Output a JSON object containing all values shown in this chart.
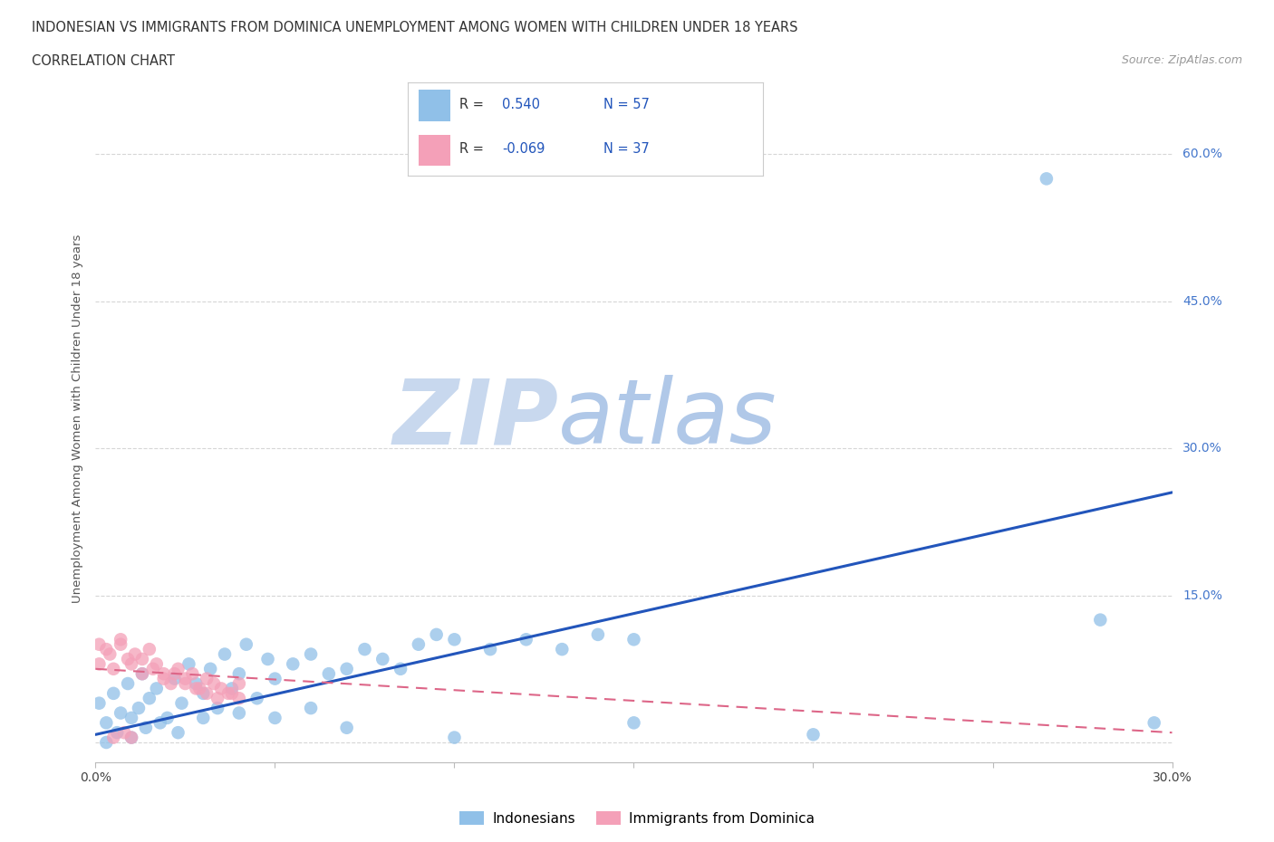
{
  "title_line1": "INDONESIAN VS IMMIGRANTS FROM DOMINICA UNEMPLOYMENT AMONG WOMEN WITH CHILDREN UNDER 18 YEARS",
  "title_line2": "CORRELATION CHART",
  "source_text": "Source: ZipAtlas.com",
  "ylabel": "Unemployment Among Women with Children Under 18 years",
  "xlim": [
    0.0,
    0.3
  ],
  "ylim": [
    -0.02,
    0.68
  ],
  "yticks": [
    0.0,
    0.15,
    0.3,
    0.45,
    0.6
  ],
  "ytick_labels": [
    "",
    "15.0%",
    "30.0%",
    "45.0%",
    "60.0%"
  ],
  "xticks": [
    0.0,
    0.05,
    0.1,
    0.15,
    0.2,
    0.25,
    0.3
  ],
  "xtick_labels": [
    "0.0%",
    "",
    "",
    "",
    "",
    "",
    "30.0%"
  ],
  "blue_R": 0.54,
  "blue_N": 57,
  "pink_R": -0.069,
  "pink_N": 37,
  "blue_color": "#90c0e8",
  "pink_color": "#f4a0b8",
  "blue_line_color": "#2255bb",
  "pink_line_color": "#dd6688",
  "grid_color": "#cccccc",
  "background_color": "#ffffff",
  "watermark_color": "#dce8f5",
  "blue_scatter_x": [
    0.001,
    0.003,
    0.005,
    0.007,
    0.009,
    0.01,
    0.012,
    0.013,
    0.015,
    0.017,
    0.02,
    0.022,
    0.024,
    0.026,
    0.028,
    0.03,
    0.032,
    0.034,
    0.036,
    0.038,
    0.04,
    0.042,
    0.045,
    0.048,
    0.05,
    0.055,
    0.06,
    0.065,
    0.07,
    0.075,
    0.08,
    0.085,
    0.09,
    0.095,
    0.1,
    0.11,
    0.12,
    0.13,
    0.14,
    0.15,
    0.003,
    0.006,
    0.01,
    0.014,
    0.018,
    0.023,
    0.03,
    0.04,
    0.05,
    0.06,
    0.07,
    0.1,
    0.15,
    0.2,
    0.265,
    0.28,
    0.295
  ],
  "blue_scatter_y": [
    0.04,
    0.02,
    0.05,
    0.03,
    0.06,
    0.025,
    0.035,
    0.07,
    0.045,
    0.055,
    0.025,
    0.065,
    0.04,
    0.08,
    0.06,
    0.05,
    0.075,
    0.035,
    0.09,
    0.055,
    0.07,
    0.1,
    0.045,
    0.085,
    0.065,
    0.08,
    0.09,
    0.07,
    0.075,
    0.095,
    0.085,
    0.075,
    0.1,
    0.11,
    0.105,
    0.095,
    0.105,
    0.095,
    0.11,
    0.105,
    0.0,
    0.01,
    0.005,
    0.015,
    0.02,
    0.01,
    0.025,
    0.03,
    0.025,
    0.035,
    0.015,
    0.005,
    0.02,
    0.008,
    0.575,
    0.125,
    0.02
  ],
  "pink_scatter_x": [
    0.001,
    0.003,
    0.005,
    0.007,
    0.009,
    0.011,
    0.013,
    0.015,
    0.017,
    0.019,
    0.021,
    0.023,
    0.025,
    0.027,
    0.029,
    0.031,
    0.033,
    0.035,
    0.038,
    0.04,
    0.001,
    0.004,
    0.007,
    0.01,
    0.013,
    0.016,
    0.019,
    0.022,
    0.025,
    0.028,
    0.031,
    0.034,
    0.037,
    0.04,
    0.005,
    0.008,
    0.01
  ],
  "pink_scatter_y": [
    0.08,
    0.095,
    0.075,
    0.1,
    0.085,
    0.09,
    0.07,
    0.095,
    0.08,
    0.07,
    0.06,
    0.075,
    0.065,
    0.07,
    0.055,
    0.065,
    0.06,
    0.055,
    0.05,
    0.06,
    0.1,
    0.09,
    0.105,
    0.08,
    0.085,
    0.075,
    0.065,
    0.07,
    0.06,
    0.055,
    0.05,
    0.045,
    0.05,
    0.045,
    0.005,
    0.01,
    0.005
  ],
  "blue_trend_x": [
    0.0,
    0.3
  ],
  "blue_trend_y": [
    0.008,
    0.255
  ],
  "pink_trend_x": [
    0.0,
    0.3
  ],
  "pink_trend_y": [
    0.075,
    0.01
  ],
  "legend_label_blue": "Indonesians",
  "legend_label_pink": "Immigrants from Dominica"
}
